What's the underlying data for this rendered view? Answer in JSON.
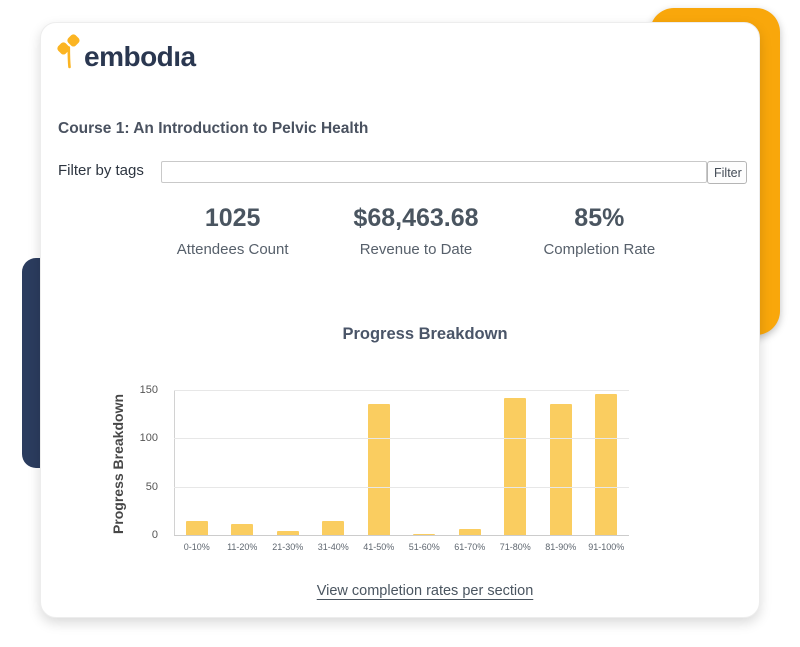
{
  "logo": {
    "text": "embodıa"
  },
  "page": {
    "course_title": "Course 1: An Introduction to Pelvic Health"
  },
  "filter": {
    "label": "Filter by tags",
    "input_value": "",
    "button_label": "Filter"
  },
  "stats": [
    {
      "value": "1025",
      "label": "Attendees Count"
    },
    {
      "value": "$68,463.68",
      "label": "Revenue to Date"
    },
    {
      "value": "85%",
      "label": "Completion Rate"
    }
  ],
  "chart_data": {
    "type": "bar",
    "title": "Progress Breakdown",
    "ylabel": "Progress Breakdown",
    "xlabel": "",
    "categories": [
      "0-10%",
      "11-20%",
      "21-30%",
      "31-40%",
      "41-50%",
      "51-60%",
      "61-70%",
      "71-80%",
      "81-90%",
      "91-100%"
    ],
    "values": [
      16,
      12,
      5,
      16,
      137,
      2,
      7,
      143,
      137,
      147
    ],
    "ylim": [
      0,
      150
    ],
    "yticks": [
      0,
      50,
      100,
      150
    ],
    "grid": true,
    "legend": "none",
    "bar_color": "#FACD60"
  },
  "footer": {
    "link_label": "View completion rates per section"
  },
  "colors": {
    "accent_yellow": "#F9A70B",
    "navy": "#2B3C5E",
    "logo_yellow": "#FBB422",
    "logo_text": "#2A3750",
    "bar_yellow": "#FACD60",
    "text_dark": "#4A5560"
  }
}
